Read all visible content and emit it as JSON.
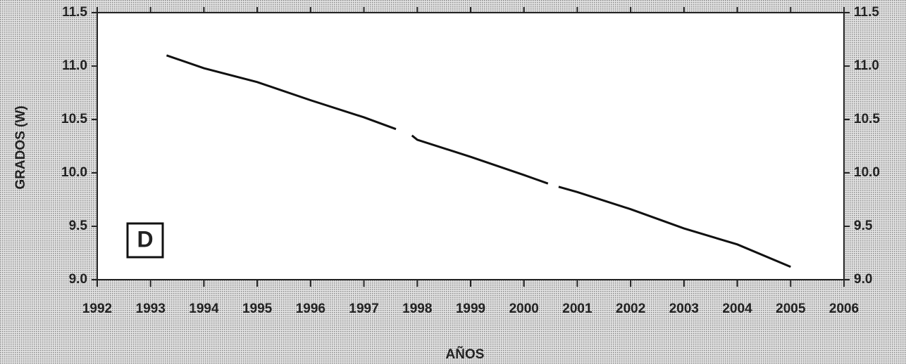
{
  "chart_data": {
    "type": "line",
    "panel_label": "D",
    "y_label": "GRADOS (W)",
    "x_label": "AÑOS",
    "x": [
      1993.3,
      1994,
      1995,
      1996,
      1997,
      1997.6,
      1997.75,
      1997.9,
      1998,
      1999,
      2000,
      2000.45,
      2000.55,
      2000.65,
      2001,
      2002,
      2003,
      2004,
      2005
    ],
    "series": [
      {
        "color": "#111111",
        "values": [
          11.1,
          10.98,
          10.85,
          10.68,
          10.52,
          10.41,
          null,
          10.35,
          10.31,
          10.15,
          9.98,
          9.9,
          null,
          9.87,
          9.82,
          9.66,
          9.48,
          9.33,
          9.12
        ]
      }
    ],
    "xlim": [
      1992,
      2006
    ],
    "xticks": [
      1992,
      1993,
      1994,
      1995,
      1996,
      1997,
      1998,
      1999,
      2000,
      2001,
      2002,
      2003,
      2004,
      2005,
      2006
    ],
    "ylim": [
      9.0,
      11.5
    ],
    "yticks": [
      {
        "value": 9.0,
        "label": "9.0"
      },
      9.5,
      {
        "value": 10.0,
        "label": "10.0"
      },
      10.5,
      {
        "value": 11.0,
        "label": "11.0"
      },
      11.5
    ],
    "right_axis_labels": true
  }
}
